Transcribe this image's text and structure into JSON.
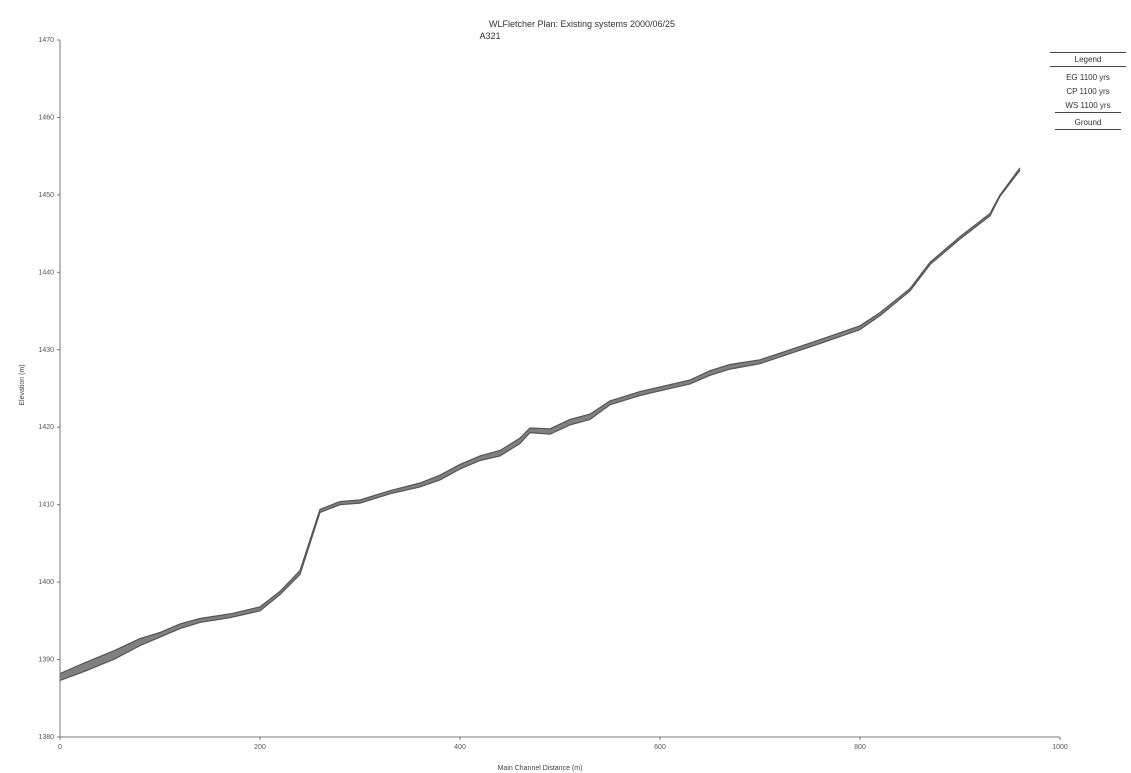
{
  "chart_data": {
    "type": "line",
    "title": "WLFletcher    Plan: Existing systems    2000/06/25",
    "subtitle": "A321",
    "xlabel": "Main Channel Distance (m)",
    "ylabel": "Elevation (m)",
    "xlim": [
      0,
      1000
    ],
    "ylim": [
      1380,
      1470
    ],
    "xticks": [
      0,
      200,
      400,
      600,
      800,
      1000
    ],
    "xtick_labels": [
      "0",
      "200",
      "400",
      "600",
      "800",
      "1000"
    ],
    "yticks": [
      1380,
      1390,
      1400,
      1410,
      1420,
      1430,
      1440,
      1450,
      1460,
      1470
    ],
    "ytick_labels": [
      "1380",
      "1390",
      "1400",
      "1410",
      "1420",
      "1430",
      "1440",
      "1450",
      "1460",
      "1470"
    ],
    "grid": false,
    "legend_position": "top-right",
    "legend": {
      "title": "Legend",
      "items": [
        "EG 1100 yrs",
        "CP 1100 yrs",
        "WS 1100 yrs",
        "Ground"
      ]
    },
    "series": [
      {
        "name": "WS 1100 yrs",
        "color": "#555555",
        "x": [
          0,
          25,
          55,
          80,
          100,
          120,
          140,
          170,
          200,
          220,
          240,
          260,
          280,
          300,
          330,
          360,
          380,
          400,
          420,
          440,
          460,
          470,
          490,
          510,
          530,
          550,
          560,
          580,
          600,
          630,
          650,
          670,
          700,
          730,
          760,
          800,
          820,
          850,
          870,
          900,
          930,
          940,
          960
        ],
        "y": [
          1388.2,
          1389.6,
          1391.2,
          1392.7,
          1393.5,
          1394.6,
          1395.3,
          1395.9,
          1396.8,
          1398.8,
          1401.5,
          1409.4,
          1410.4,
          1410.6,
          1411.8,
          1412.8,
          1413.8,
          1415.2,
          1416.3,
          1417.0,
          1418.6,
          1419.9,
          1419.8,
          1421.0,
          1421.7,
          1423.4,
          1423.8,
          1424.6,
          1425.2,
          1426.1,
          1427.3,
          1428.1,
          1428.7,
          1430.0,
          1431.3,
          1433.1,
          1434.8,
          1437.9,
          1441.3,
          1444.6,
          1447.6,
          1450.0,
          1453.5
        ]
      },
      {
        "name": "Ground",
        "color": "#555555",
        "x": [
          0,
          25,
          55,
          80,
          100,
          120,
          140,
          170,
          200,
          220,
          240,
          260,
          280,
          300,
          330,
          360,
          380,
          400,
          420,
          440,
          460,
          470,
          490,
          510,
          530,
          550,
          560,
          580,
          600,
          630,
          650,
          670,
          700,
          730,
          760,
          800,
          820,
          850,
          870,
          900,
          930,
          940,
          960
        ],
        "y": [
          1387.3,
          1388.5,
          1390.1,
          1391.8,
          1392.9,
          1394.0,
          1394.8,
          1395.4,
          1396.3,
          1398.4,
          1401.0,
          1409.0,
          1410.0,
          1410.2,
          1411.4,
          1412.3,
          1413.2,
          1414.6,
          1415.7,
          1416.3,
          1417.9,
          1419.3,
          1419.1,
          1420.3,
          1421.0,
          1422.9,
          1423.3,
          1424.1,
          1424.7,
          1425.6,
          1426.7,
          1427.5,
          1428.2,
          1429.5,
          1430.8,
          1432.6,
          1434.4,
          1437.6,
          1441.0,
          1444.3,
          1447.3,
          1449.8,
          1453.2
        ]
      }
    ]
  }
}
